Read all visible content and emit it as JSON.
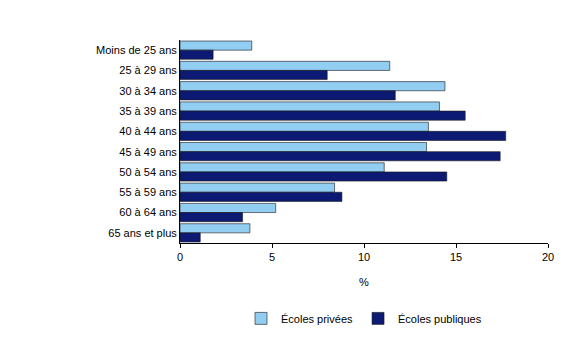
{
  "chart_data": {
    "type": "bar",
    "orientation": "horizontal",
    "x_label": "%",
    "categories": [
      "Moins de 25 ans",
      "25 à 29 ans",
      "30 à 34 ans",
      "35 à 39 ans",
      "40 à 44 ans",
      "45 à 49 ans",
      "50 à 54 ans",
      "55 à 59 ans",
      "60 à 64 ans",
      "65 ans et plus"
    ],
    "series": [
      {
        "name": "Écoles privées",
        "color": "#92cdf2",
        "values": [
          3.9,
          11.4,
          14.4,
          14.1,
          13.5,
          13.4,
          11.1,
          8.4,
          5.2,
          3.8
        ]
      },
      {
        "name": "Écoles publiques",
        "color": "#0c1a73",
        "values": [
          1.8,
          8.0,
          11.7,
          15.5,
          17.7,
          17.4,
          14.5,
          8.8,
          3.4,
          1.1
        ]
      }
    ],
    "xlim": [
      0,
      20
    ],
    "xticks": [
      0,
      5,
      10,
      15,
      20
    ],
    "grid": false,
    "legend": "bottom"
  }
}
